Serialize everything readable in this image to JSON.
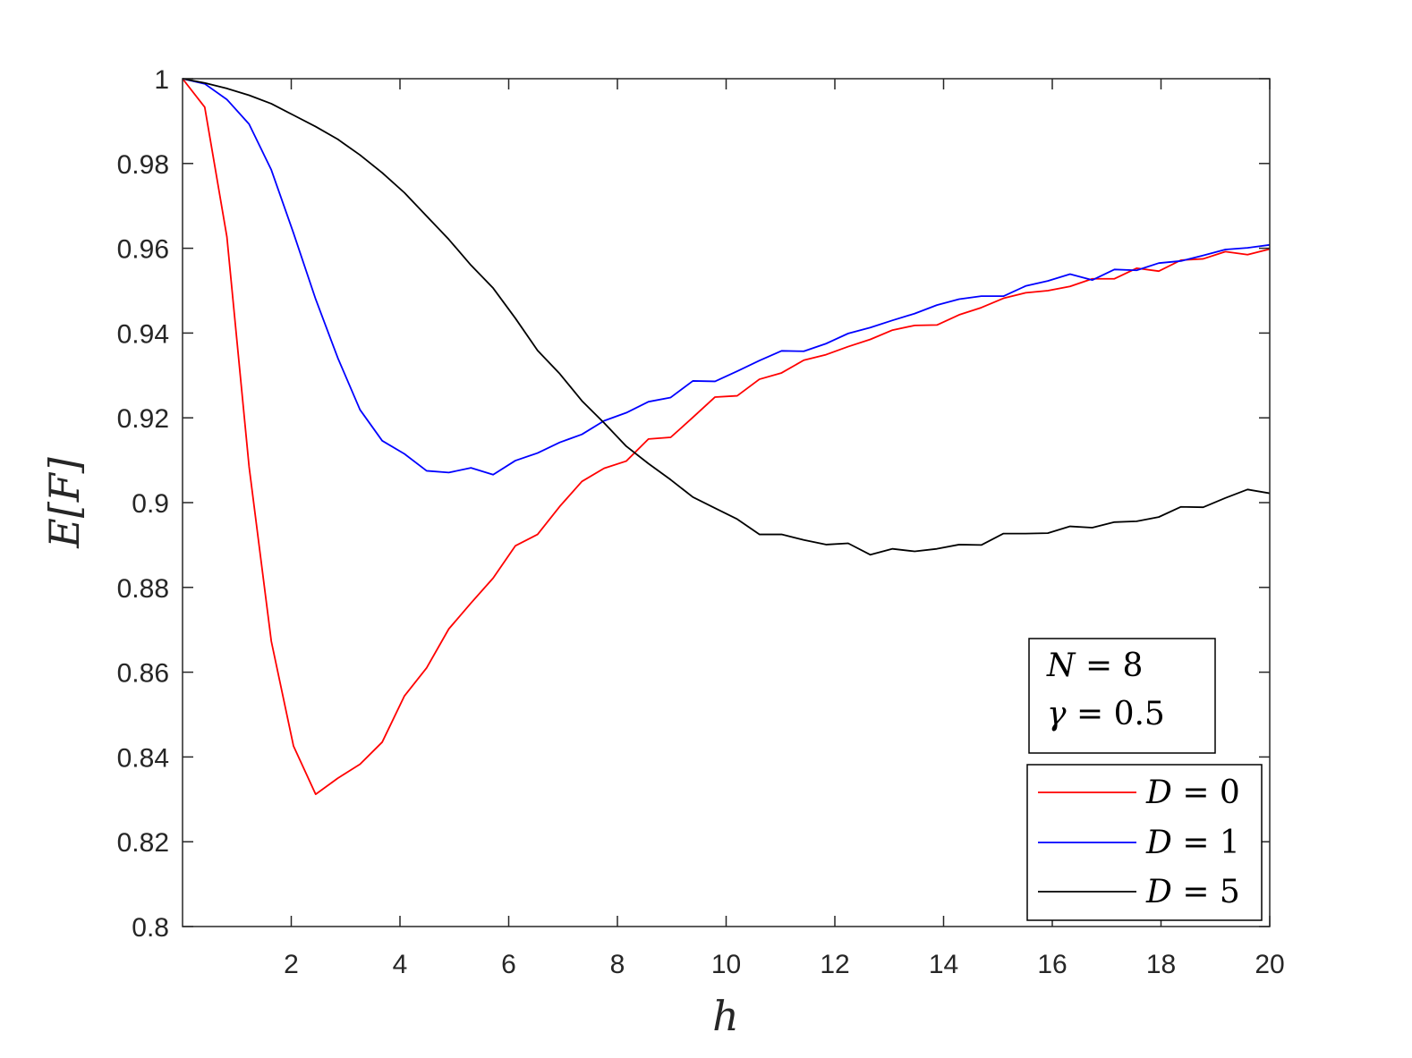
{
  "chart_data": {
    "type": "line",
    "title": "",
    "xlabel": "h",
    "ylabel": "E[F]",
    "xlim": [
      0,
      20
    ],
    "ylim": [
      0.8,
      1
    ],
    "xticks": [
      2,
      4,
      6,
      8,
      10,
      12,
      14,
      16,
      18,
      20
    ],
    "xtick_labels": [
      "2",
      "4",
      "6",
      "8",
      "10",
      "12",
      "14",
      "16",
      "18",
      "20"
    ],
    "yticks": [
      0.8,
      0.82,
      0.84,
      0.86,
      0.88,
      0.9,
      0.92,
      0.94,
      0.96,
      0.98,
      1
    ],
    "ytick_labels": [
      "0.8",
      "0.82",
      "0.84",
      "0.86",
      "0.88",
      "0.9",
      "0.92",
      "0.94",
      "0.96",
      "0.98",
      "1"
    ],
    "grid": false,
    "legend_position": "bottom-right",
    "annotation": {
      "line1": "N = 8",
      "line2": "γ = 0.5"
    },
    "x": [
      0,
      0.408,
      0.816,
      1.224,
      1.633,
      2.041,
      2.449,
      2.857,
      3.265,
      3.673,
      4.082,
      4.49,
      4.898,
      5.306,
      5.714,
      6.122,
      6.531,
      6.939,
      7.347,
      7.755,
      8.163,
      8.571,
      8.98,
      9.388,
      9.796,
      10.204,
      10.612,
      11.02,
      11.429,
      11.837,
      12.245,
      12.653,
      13.061,
      13.469,
      13.878,
      14.286,
      14.694,
      15.102,
      15.51,
      15.918,
      16.327,
      16.735,
      17.143,
      17.551,
      17.959,
      18.367,
      18.776,
      19.184,
      19.592,
      20
    ],
    "series": [
      {
        "name": "D = 0",
        "label": "0",
        "color": "#ff0000",
        "values": [
          1.0,
          0.9933,
          0.9627,
          0.9085,
          0.8673,
          0.8426,
          0.8312,
          0.835,
          0.8383,
          0.8435,
          0.8544,
          0.861,
          0.8702,
          0.8763,
          0.8822,
          0.8898,
          0.8925,
          0.8991,
          0.905,
          0.9081,
          0.9098,
          0.915,
          0.9154,
          0.9201,
          0.9249,
          0.9252,
          0.9291,
          0.9306,
          0.9336,
          0.9349,
          0.9368,
          0.9385,
          0.9407,
          0.9418,
          0.9419,
          0.9443,
          0.946,
          0.9482,
          0.9495,
          0.95,
          0.951,
          0.9528,
          0.9528,
          0.9553,
          0.9546,
          0.9572,
          0.9575,
          0.9592,
          0.9585,
          0.9598
        ]
      },
      {
        "name": "D = 1",
        "label": "1",
        "color": "#0000ff",
        "values": [
          1.0,
          0.9988,
          0.9951,
          0.9893,
          0.9785,
          0.9636,
          0.948,
          0.9341,
          0.9219,
          0.9146,
          0.9115,
          0.9075,
          0.9071,
          0.9082,
          0.9066,
          0.9099,
          0.9117,
          0.9142,
          0.9161,
          0.9193,
          0.9212,
          0.9238,
          0.9248,
          0.9287,
          0.9286,
          0.931,
          0.9335,
          0.9358,
          0.9357,
          0.9375,
          0.9399,
          0.9413,
          0.943,
          0.9446,
          0.9466,
          0.948,
          0.9487,
          0.9487,
          0.9511,
          0.9523,
          0.9539,
          0.9525,
          0.955,
          0.9548,
          0.9565,
          0.957,
          0.9583,
          0.9597,
          0.9601,
          0.9608
        ]
      },
      {
        "name": "D = 5",
        "label": "5",
        "color": "#000000",
        "values": [
          1.0,
          0.999,
          0.9977,
          0.9961,
          0.9941,
          0.9914,
          0.9887,
          0.9857,
          0.982,
          0.9778,
          0.9731,
          0.9676,
          0.9621,
          0.956,
          0.9506,
          0.9435,
          0.9359,
          0.9304,
          0.924,
          0.9188,
          0.9133,
          0.9092,
          0.9054,
          0.9013,
          0.8987,
          0.8961,
          0.8925,
          0.8925,
          0.8912,
          0.8901,
          0.8904,
          0.8877,
          0.8891,
          0.8885,
          0.8891,
          0.8901,
          0.89,
          0.8927,
          0.8927,
          0.8928,
          0.8944,
          0.8941,
          0.8954,
          0.8956,
          0.8966,
          0.899,
          0.8989,
          0.9011,
          0.9031,
          0.9022
        ]
      }
    ]
  }
}
